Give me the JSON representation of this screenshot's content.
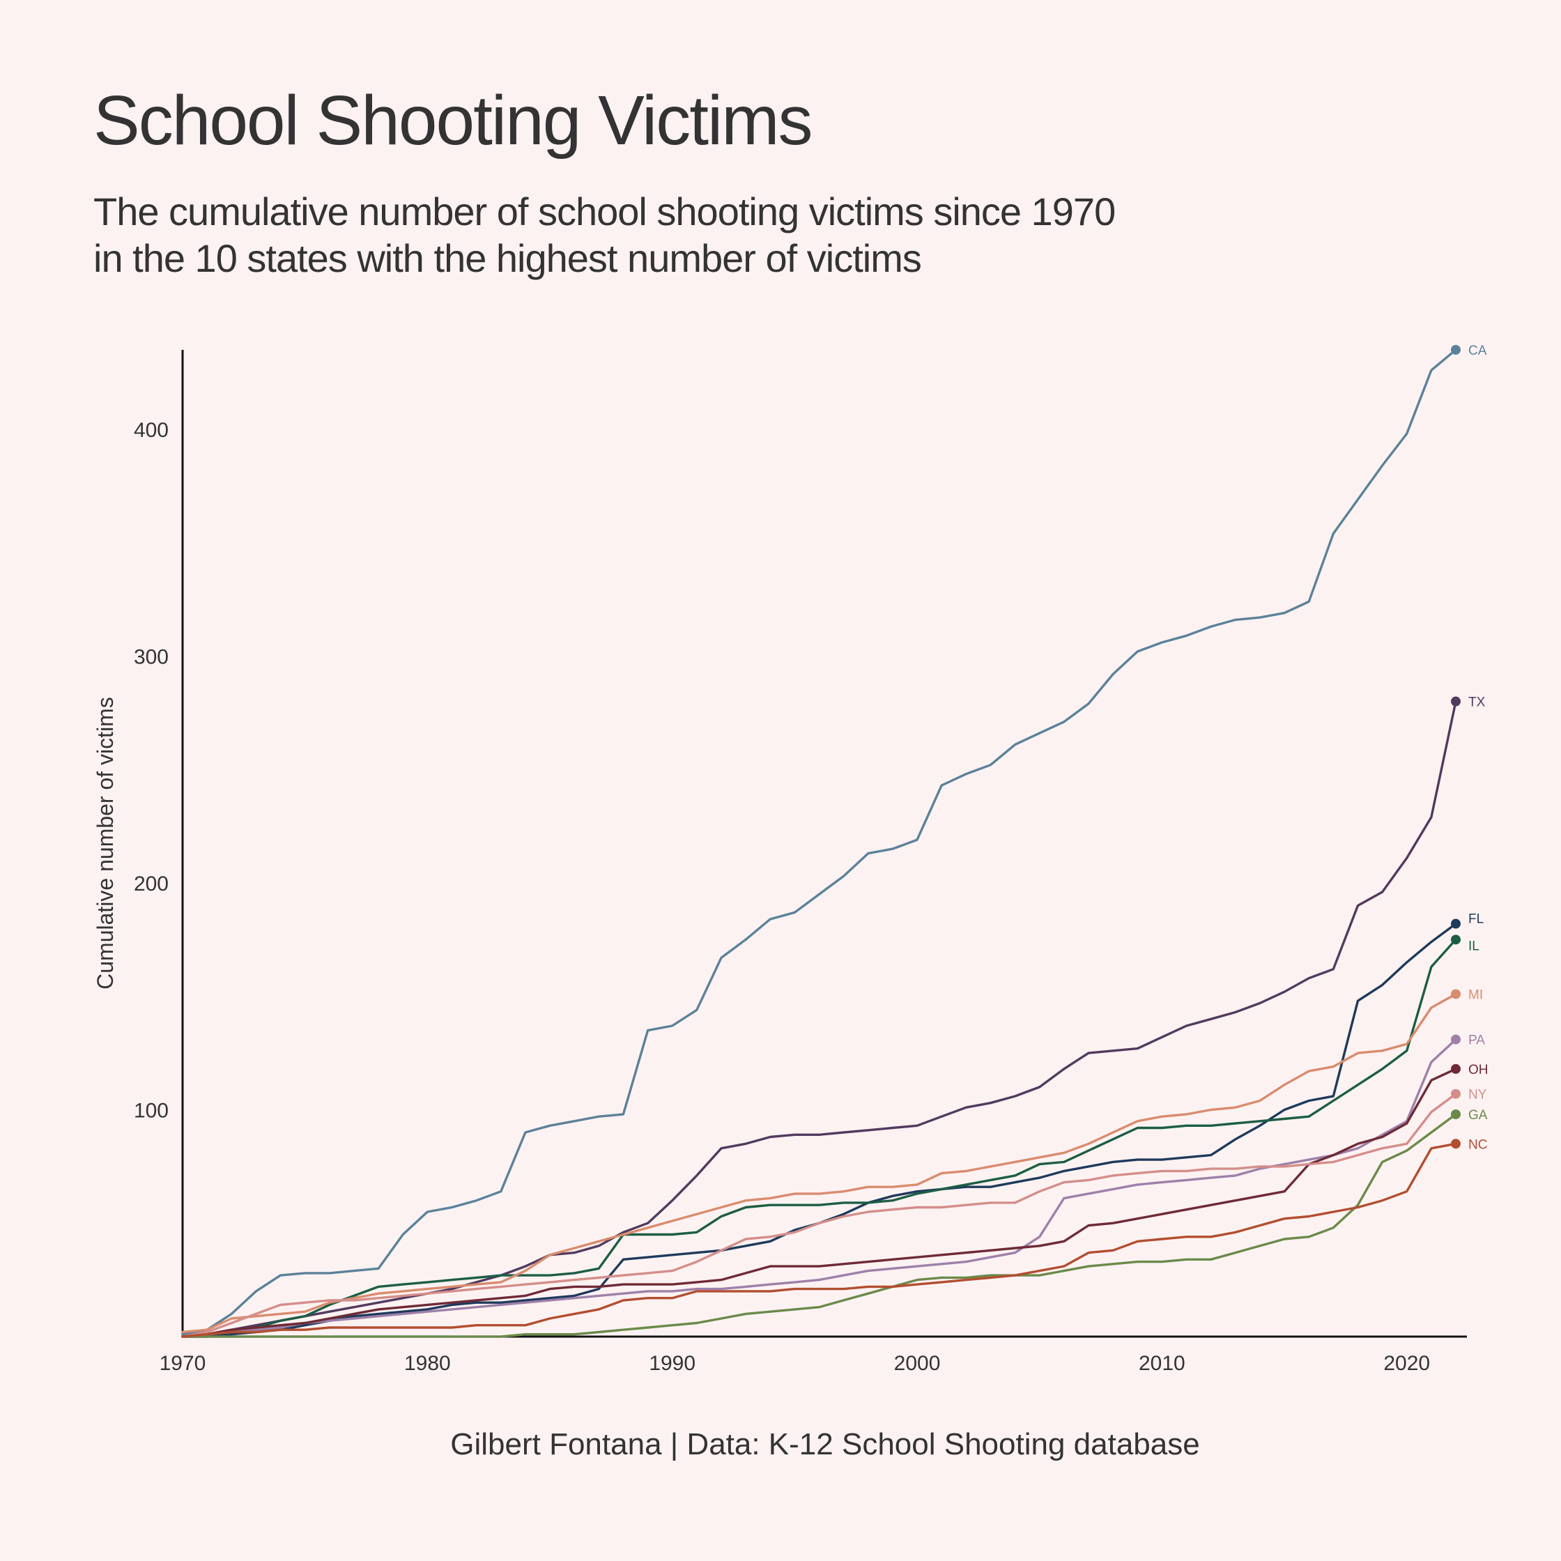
{
  "title": "School Shooting Victims",
  "subtitle": {
    "line1": "The cumulative number of school shooting victims since 1970",
    "line2": "in the 10 states with the highest number of victims"
  },
  "caption": "Gilbert Fontana | Data: K-12 School Shooting database",
  "chart_data": {
    "type": "line",
    "title": "School Shooting Victims",
    "xlabel": "",
    "ylabel": "Cumulative number of victims",
    "xlim": [
      1970,
      2022
    ],
    "ylim": [
      0,
      435
    ],
    "x_ticks": [
      1970,
      1980,
      1990,
      2000,
      2010,
      2020
    ],
    "y_ticks": [
      100,
      200,
      300,
      400
    ],
    "grid": false,
    "legend": "direct labels at line ends (right)",
    "background": "#fdf2f2",
    "x": [
      1970,
      1971,
      1972,
      1973,
      1974,
      1975,
      1976,
      1977,
      1978,
      1979,
      1980,
      1981,
      1982,
      1983,
      1984,
      1985,
      1986,
      1987,
      1988,
      1989,
      1990,
      1991,
      1992,
      1993,
      1994,
      1995,
      1996,
      1997,
      1998,
      1999,
      2000,
      2001,
      2002,
      2003,
      2004,
      2005,
      2006,
      2007,
      2008,
      2009,
      2010,
      2011,
      2012,
      2013,
      2014,
      2015,
      2016,
      2017,
      2018,
      2019,
      2020,
      2021,
      2022
    ],
    "series": [
      {
        "name": "CA",
        "color": "#5b8299",
        "values": [
          1,
          3,
          10,
          20,
          27,
          28,
          28,
          29,
          30,
          45,
          55,
          57,
          60,
          64,
          90,
          93,
          95,
          97,
          98,
          135,
          137,
          144,
          167,
          175,
          184,
          187,
          195,
          203,
          213,
          215,
          219,
          243,
          248,
          252,
          261,
          266,
          271,
          279,
          292,
          302,
          306,
          309,
          313,
          316,
          317,
          319,
          324,
          354,
          369,
          384,
          398,
          426,
          435
        ]
      },
      {
        "name": "TX",
        "color": "#523a5e",
        "values": [
          0,
          1,
          3,
          5,
          7,
          9,
          11,
          13,
          15,
          17,
          19,
          21,
          24,
          27,
          31,
          36,
          37,
          40,
          46,
          50,
          60,
          71,
          83,
          85,
          88,
          89,
          89,
          90,
          91,
          92,
          93,
          97,
          101,
          103,
          106,
          110,
          118,
          125,
          126,
          127,
          132,
          137,
          140,
          143,
          147,
          152,
          158,
          162,
          190,
          196,
          211,
          229,
          280
        ]
      },
      {
        "name": "FL",
        "color": "#1e3a5c",
        "values": [
          0,
          0,
          1,
          2,
          3,
          5,
          7,
          9,
          10,
          11,
          12,
          14,
          15,
          15,
          16,
          17,
          18,
          21,
          34,
          35,
          36,
          37,
          38,
          40,
          42,
          47,
          50,
          54,
          59,
          62,
          64,
          65,
          66,
          66,
          68,
          70,
          73,
          75,
          77,
          78,
          78,
          79,
          80,
          87,
          93,
          100,
          104,
          106,
          148,
          155,
          165,
          174,
          182
        ]
      },
      {
        "name": "IL",
        "color": "#1c5e44",
        "values": [
          0,
          1,
          2,
          4,
          7,
          9,
          14,
          18,
          22,
          23,
          24,
          25,
          26,
          27,
          27,
          27,
          28,
          30,
          45,
          45,
          45,
          46,
          53,
          57,
          58,
          58,
          58,
          59,
          59,
          60,
          63,
          65,
          67,
          69,
          71,
          76,
          77,
          82,
          87,
          92,
          92,
          93,
          93,
          94,
          95,
          96,
          97,
          104,
          111,
          118,
          126,
          163,
          175
        ]
      },
      {
        "name": "MI",
        "color": "#d98c6e",
        "values": [
          2,
          3,
          8,
          9,
          10,
          11,
          15,
          17,
          19,
          20,
          21,
          22,
          23,
          24,
          29,
          36,
          39,
          42,
          45,
          48,
          51,
          54,
          57,
          60,
          61,
          63,
          63,
          64,
          66,
          66,
          67,
          72,
          73,
          75,
          77,
          79,
          81,
          85,
          90,
          95,
          97,
          98,
          100,
          101,
          104,
          111,
          117,
          119,
          125,
          126,
          129,
          145,
          151
        ]
      },
      {
        "name": "PA",
        "color": "#9e80a8",
        "values": [
          0,
          1,
          2,
          3,
          4,
          6,
          7,
          8,
          9,
          10,
          11,
          12,
          13,
          14,
          15,
          16,
          17,
          18,
          19,
          20,
          20,
          21,
          21,
          22,
          23,
          24,
          25,
          27,
          29,
          30,
          31,
          32,
          33,
          35,
          37,
          44,
          61,
          63,
          65,
          67,
          68,
          69,
          70,
          71,
          74,
          76,
          78,
          80,
          83,
          89,
          95,
          121,
          131
        ]
      },
      {
        "name": "OH",
        "color": "#6e2a36",
        "values": [
          0,
          1,
          3,
          4,
          5,
          6,
          8,
          10,
          12,
          13,
          14,
          15,
          16,
          17,
          18,
          21,
          22,
          22,
          23,
          23,
          23,
          24,
          25,
          28,
          31,
          31,
          31,
          32,
          33,
          34,
          35,
          36,
          37,
          38,
          39,
          40,
          42,
          49,
          50,
          52,
          54,
          56,
          58,
          60,
          62,
          64,
          76,
          80,
          85,
          88,
          94,
          113,
          118
        ]
      },
      {
        "name": "NY",
        "color": "#d48e8a",
        "values": [
          0,
          2,
          6,
          10,
          14,
          15,
          16,
          16,
          17,
          18,
          19,
          20,
          21,
          22,
          23,
          24,
          25,
          26,
          27,
          28,
          29,
          33,
          38,
          43,
          44,
          46,
          50,
          53,
          55,
          56,
          57,
          57,
          58,
          59,
          59,
          64,
          68,
          69,
          71,
          72,
          73,
          73,
          74,
          74,
          75,
          75,
          76,
          77,
          80,
          83,
          85,
          99,
          107
        ]
      },
      {
        "name": "GA",
        "color": "#6b8a4a",
        "values": [
          0,
          0,
          0,
          0,
          0,
          0,
          0,
          0,
          0,
          0,
          0,
          0,
          0,
          0,
          1,
          1,
          1,
          2,
          3,
          4,
          5,
          6,
          8,
          10,
          11,
          12,
          13,
          16,
          19,
          22,
          25,
          26,
          26,
          27,
          27,
          27,
          29,
          31,
          32,
          33,
          33,
          34,
          34,
          37,
          40,
          43,
          44,
          48,
          58,
          77,
          82,
          90,
          98
        ]
      },
      {
        "name": "NC",
        "color": "#b24e30",
        "values": [
          0,
          1,
          2,
          2,
          3,
          3,
          4,
          4,
          4,
          4,
          4,
          4,
          5,
          5,
          5,
          8,
          10,
          12,
          16,
          17,
          17,
          20,
          20,
          20,
          20,
          21,
          21,
          21,
          22,
          22,
          23,
          24,
          25,
          26,
          27,
          29,
          31,
          37,
          38,
          42,
          43,
          44,
          44,
          46,
          49,
          52,
          53,
          55,
          57,
          60,
          64,
          83,
          85
        ]
      }
    ]
  }
}
